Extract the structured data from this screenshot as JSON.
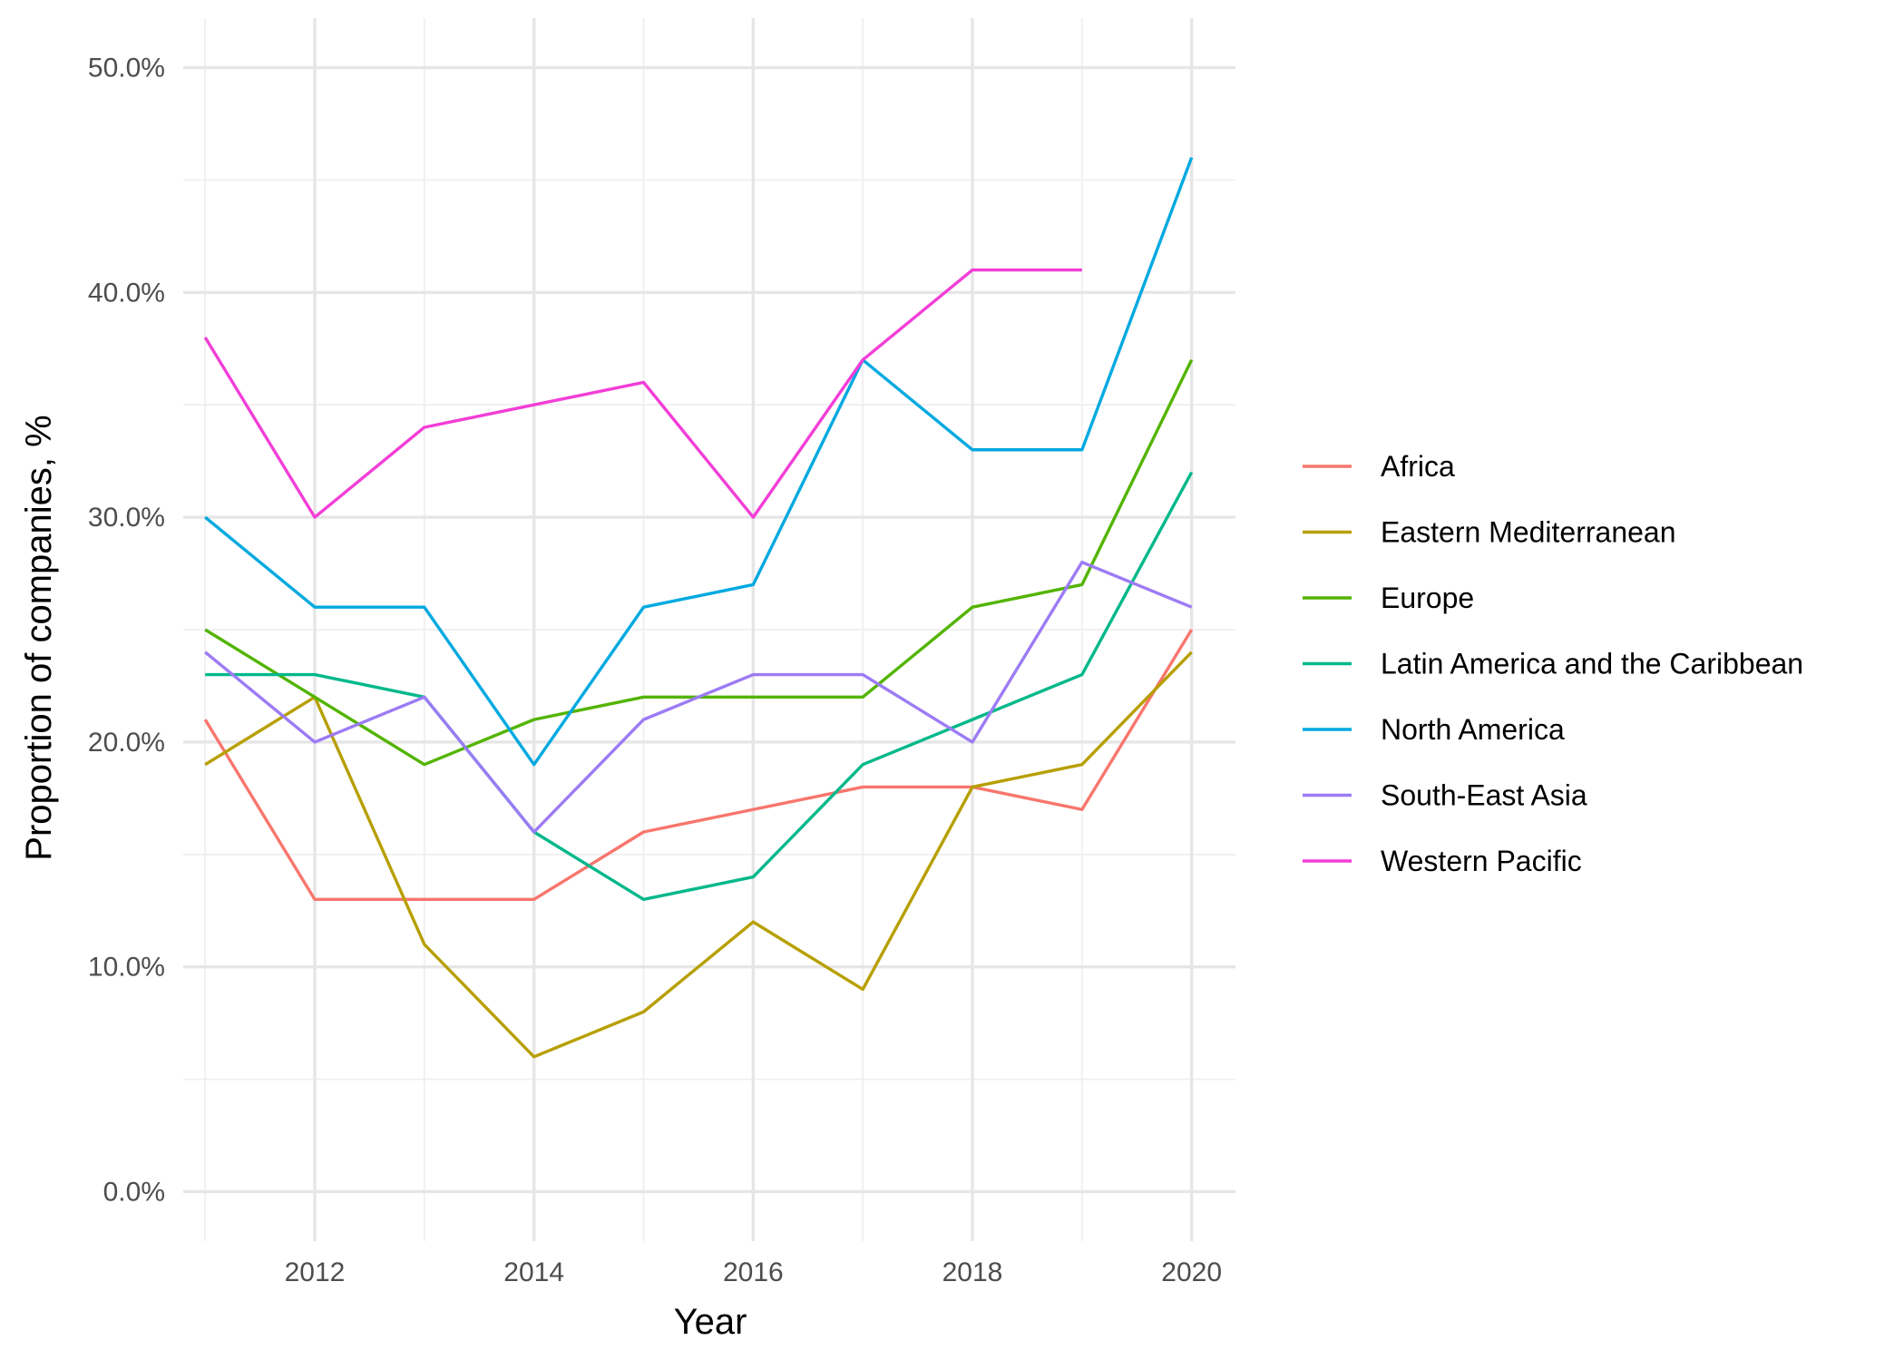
{
  "chart_data": {
    "type": "line",
    "title": "",
    "xlabel": "Year",
    "ylabel": "Proportion of companies, %",
    "x": [
      2011,
      2012,
      2013,
      2014,
      2015,
      2016,
      2017,
      2018,
      2019,
      2020
    ],
    "x_ticks": [
      2012,
      2014,
      2016,
      2018,
      2020
    ],
    "x_tick_labels": [
      "2012",
      "2014",
      "2016",
      "2018",
      "2020"
    ],
    "xlim": [
      2010.8,
      2020.4
    ],
    "ylim": [
      -0.022,
      0.522
    ],
    "y_ticks": [
      0,
      0.1,
      0.2,
      0.3,
      0.4,
      0.5
    ],
    "y_tick_labels": [
      "0.0%",
      "10.0%",
      "20.0%",
      "30.0%",
      "40.0%",
      "50.0%"
    ],
    "grid": true,
    "legend_position": "right",
    "series": [
      {
        "name": "Africa",
        "color": "#F8766D",
        "values": [
          0.21,
          0.13,
          0.13,
          0.13,
          0.16,
          0.17,
          0.18,
          0.18,
          0.17,
          0.25
        ]
      },
      {
        "name": "Eastern Mediterranean",
        "color": "#B79F00",
        "values": [
          0.19,
          0.22,
          0.11,
          0.06,
          0.08,
          0.12,
          0.09,
          0.18,
          0.19,
          0.24
        ]
      },
      {
        "name": "Europe",
        "color": "#53B400",
        "values": [
          0.25,
          0.22,
          0.19,
          0.21,
          0.22,
          0.22,
          0.22,
          0.26,
          0.27,
          0.37
        ]
      },
      {
        "name": "Latin America and the Caribbean",
        "color": "#00B88A",
        "values": [
          0.23,
          0.23,
          0.22,
          0.16,
          0.13,
          0.14,
          0.19,
          0.21,
          0.23,
          0.32
        ]
      },
      {
        "name": "North America",
        "color": "#00A9E0",
        "values": [
          0.3,
          0.26,
          0.26,
          0.19,
          0.26,
          0.27,
          0.37,
          0.33,
          0.33,
          0.46
        ]
      },
      {
        "name": "South-East Asia",
        "color": "#9C7BF5",
        "values": [
          0.24,
          0.2,
          0.22,
          0.16,
          0.21,
          0.23,
          0.23,
          0.2,
          0.28,
          0.26
        ]
      },
      {
        "name": "Western Pacific",
        "color": "#F23ED7",
        "values": [
          0.38,
          0.3,
          0.34,
          0.35,
          0.36,
          0.3,
          0.37,
          0.41,
          0.41,
          null
        ]
      }
    ]
  }
}
